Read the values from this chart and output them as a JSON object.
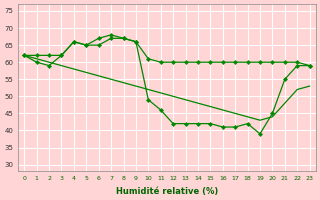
{
  "xlabel": "Humidité relative (%)",
  "background_color": "#ffd5d5",
  "plot_bg_color": "#ffd5d5",
  "grid_color": "#ffffff",
  "line_color": "#008800",
  "ylim": [
    28,
    77
  ],
  "xlim": [
    -0.5,
    23.5
  ],
  "yticks": [
    30,
    35,
    40,
    45,
    50,
    55,
    60,
    65,
    70,
    75
  ],
  "xticks": [
    0,
    1,
    2,
    3,
    4,
    5,
    6,
    7,
    8,
    9,
    10,
    11,
    12,
    13,
    14,
    15,
    16,
    17,
    18,
    19,
    20,
    21,
    22,
    23
  ],
  "line1_x": [
    0,
    1,
    2,
    3,
    4,
    5,
    6,
    7,
    8,
    9,
    10,
    11,
    12,
    13,
    14,
    15,
    16,
    17,
    18,
    19,
    20,
    21,
    22,
    23
  ],
  "line1_y": [
    62,
    62,
    62,
    62,
    66,
    65,
    67,
    68,
    67,
    66,
    61,
    60,
    60,
    60,
    60,
    60,
    60,
    60,
    60,
    60,
    60,
    60,
    60,
    59
  ],
  "line2_x": [
    0,
    1,
    2,
    3,
    4,
    5,
    6,
    7,
    8,
    9,
    10,
    11,
    12,
    13,
    14,
    15,
    16,
    17,
    18,
    19,
    20,
    21,
    22,
    23
  ],
  "line2_y": [
    62,
    61,
    60,
    59,
    58,
    57,
    56,
    55,
    54,
    53,
    52,
    51,
    50,
    49,
    48,
    47,
    46,
    45,
    44,
    43,
    44,
    48,
    52,
    53
  ],
  "line3_x": [
    0,
    1,
    2,
    3,
    4,
    5,
    6,
    7,
    8,
    9,
    10,
    11,
    12,
    13,
    14,
    15,
    16,
    17,
    18,
    19,
    20,
    21,
    22,
    23
  ],
  "line3_y": [
    62,
    60,
    59,
    62,
    66,
    65,
    65,
    67,
    67,
    66,
    49,
    46,
    42,
    42,
    42,
    42,
    41,
    41,
    42,
    39,
    45,
    55,
    59,
    59
  ]
}
